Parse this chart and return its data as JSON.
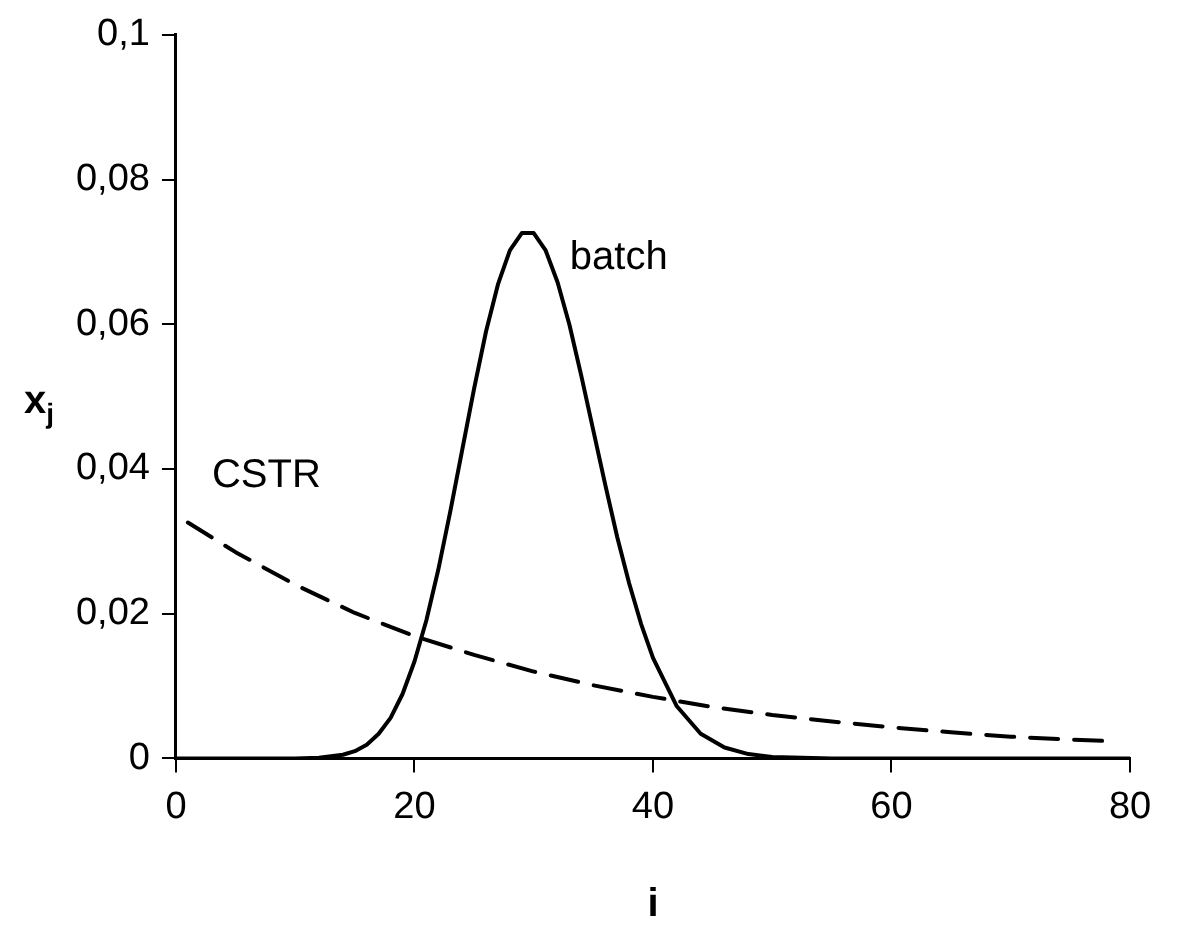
{
  "chart_data": {
    "type": "line",
    "xlabel": "i",
    "ylabel": "x$_{j}$",
    "xlim": [
      0,
      80
    ],
    "xticks": [
      0,
      20,
      40,
      60,
      80
    ],
    "ylim": [
      0,
      0.1
    ],
    "yticks": [
      0,
      {
        "value": 0.02,
        "label": "0,02"
      },
      {
        "value": 0.04,
        "label": "0,04"
      },
      {
        "value": 0.06,
        "label": "0,06"
      },
      {
        "value": 0.08,
        "label": "0,08"
      },
      {
        "value": 0.1,
        "label": "0,1"
      }
    ],
    "grid": false,
    "legend": false,
    "marker": "none",
    "series": [
      {
        "name": "batch",
        "color": "#000000",
        "line_style": "solid",
        "x": [
          0,
          10,
          12,
          14,
          15,
          16,
          17,
          18,
          19,
          20,
          21,
          22,
          23,
          24,
          25,
          26,
          27,
          28,
          29,
          30,
          31,
          32,
          33,
          34,
          35,
          36,
          37,
          38,
          39,
          40,
          42,
          44,
          46,
          48,
          50,
          55,
          60,
          70,
          80
        ],
        "values": [
          0,
          0,
          0.0001,
          0.0005,
          0.001,
          0.0019,
          0.0034,
          0.0056,
          0.0089,
          0.0134,
          0.0191,
          0.0261,
          0.0341,
          0.0426,
          0.0511,
          0.059,
          0.0655,
          0.0702,
          0.0726,
          0.0726,
          0.0702,
          0.0658,
          0.0599,
          0.0528,
          0.0453,
          0.0378,
          0.0306,
          0.0242,
          0.0186,
          0.0139,
          0.0072,
          0.0034,
          0.0015,
          0.0006,
          0.0002,
          0,
          0,
          0,
          0
        ]
      },
      {
        "name": "CSTR",
        "color": "#000000",
        "line_style": "dashed",
        "x": [
          1,
          5,
          10,
          15,
          20,
          25,
          30,
          35,
          40,
          45,
          50,
          55,
          60,
          65,
          70,
          75,
          78
        ],
        "values": [
          0.0326,
          0.0285,
          0.024,
          0.0201,
          0.0169,
          0.0143,
          0.012,
          0.0101,
          0.0085,
          0.0071,
          0.006,
          0.0051,
          0.0043,
          0.0036,
          0.003,
          0.0026,
          0.0024
        ]
      }
    ]
  }
}
